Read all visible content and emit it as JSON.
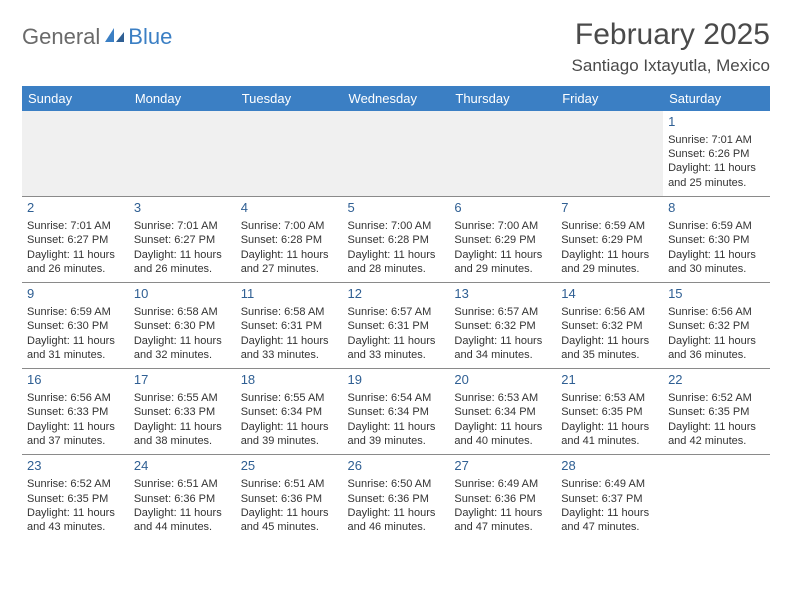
{
  "logo": {
    "part1": "General",
    "part2": "Blue"
  },
  "title": "February 2025",
  "location": "Santiago Ixtayutla, Mexico",
  "colors": {
    "header_bg": "#3b7fc4",
    "header_text": "#ffffff",
    "daynum": "#2f5f93",
    "grid_line": "#8a8a8a",
    "body_text": "#333333",
    "logo_gray": "#6a6a6a",
    "logo_blue": "#3b7fc4"
  },
  "weekdays": [
    "Sunday",
    "Monday",
    "Tuesday",
    "Wednesday",
    "Thursday",
    "Friday",
    "Saturday"
  ],
  "weeks": [
    [
      null,
      null,
      null,
      null,
      null,
      null,
      {
        "n": "1",
        "sr": "Sunrise: 7:01 AM",
        "ss": "Sunset: 6:26 PM",
        "d1": "Daylight: 11 hours",
        "d2": "and 25 minutes."
      }
    ],
    [
      {
        "n": "2",
        "sr": "Sunrise: 7:01 AM",
        "ss": "Sunset: 6:27 PM",
        "d1": "Daylight: 11 hours",
        "d2": "and 26 minutes."
      },
      {
        "n": "3",
        "sr": "Sunrise: 7:01 AM",
        "ss": "Sunset: 6:27 PM",
        "d1": "Daylight: 11 hours",
        "d2": "and 26 minutes."
      },
      {
        "n": "4",
        "sr": "Sunrise: 7:00 AM",
        "ss": "Sunset: 6:28 PM",
        "d1": "Daylight: 11 hours",
        "d2": "and 27 minutes."
      },
      {
        "n": "5",
        "sr": "Sunrise: 7:00 AM",
        "ss": "Sunset: 6:28 PM",
        "d1": "Daylight: 11 hours",
        "d2": "and 28 minutes."
      },
      {
        "n": "6",
        "sr": "Sunrise: 7:00 AM",
        "ss": "Sunset: 6:29 PM",
        "d1": "Daylight: 11 hours",
        "d2": "and 29 minutes."
      },
      {
        "n": "7",
        "sr": "Sunrise: 6:59 AM",
        "ss": "Sunset: 6:29 PM",
        "d1": "Daylight: 11 hours",
        "d2": "and 29 minutes."
      },
      {
        "n": "8",
        "sr": "Sunrise: 6:59 AM",
        "ss": "Sunset: 6:30 PM",
        "d1": "Daylight: 11 hours",
        "d2": "and 30 minutes."
      }
    ],
    [
      {
        "n": "9",
        "sr": "Sunrise: 6:59 AM",
        "ss": "Sunset: 6:30 PM",
        "d1": "Daylight: 11 hours",
        "d2": "and 31 minutes."
      },
      {
        "n": "10",
        "sr": "Sunrise: 6:58 AM",
        "ss": "Sunset: 6:30 PM",
        "d1": "Daylight: 11 hours",
        "d2": "and 32 minutes."
      },
      {
        "n": "11",
        "sr": "Sunrise: 6:58 AM",
        "ss": "Sunset: 6:31 PM",
        "d1": "Daylight: 11 hours",
        "d2": "and 33 minutes."
      },
      {
        "n": "12",
        "sr": "Sunrise: 6:57 AM",
        "ss": "Sunset: 6:31 PM",
        "d1": "Daylight: 11 hours",
        "d2": "and 33 minutes."
      },
      {
        "n": "13",
        "sr": "Sunrise: 6:57 AM",
        "ss": "Sunset: 6:32 PM",
        "d1": "Daylight: 11 hours",
        "d2": "and 34 minutes."
      },
      {
        "n": "14",
        "sr": "Sunrise: 6:56 AM",
        "ss": "Sunset: 6:32 PM",
        "d1": "Daylight: 11 hours",
        "d2": "and 35 minutes."
      },
      {
        "n": "15",
        "sr": "Sunrise: 6:56 AM",
        "ss": "Sunset: 6:32 PM",
        "d1": "Daylight: 11 hours",
        "d2": "and 36 minutes."
      }
    ],
    [
      {
        "n": "16",
        "sr": "Sunrise: 6:56 AM",
        "ss": "Sunset: 6:33 PM",
        "d1": "Daylight: 11 hours",
        "d2": "and 37 minutes."
      },
      {
        "n": "17",
        "sr": "Sunrise: 6:55 AM",
        "ss": "Sunset: 6:33 PM",
        "d1": "Daylight: 11 hours",
        "d2": "and 38 minutes."
      },
      {
        "n": "18",
        "sr": "Sunrise: 6:55 AM",
        "ss": "Sunset: 6:34 PM",
        "d1": "Daylight: 11 hours",
        "d2": "and 39 minutes."
      },
      {
        "n": "19",
        "sr": "Sunrise: 6:54 AM",
        "ss": "Sunset: 6:34 PM",
        "d1": "Daylight: 11 hours",
        "d2": "and 39 minutes."
      },
      {
        "n": "20",
        "sr": "Sunrise: 6:53 AM",
        "ss": "Sunset: 6:34 PM",
        "d1": "Daylight: 11 hours",
        "d2": "and 40 minutes."
      },
      {
        "n": "21",
        "sr": "Sunrise: 6:53 AM",
        "ss": "Sunset: 6:35 PM",
        "d1": "Daylight: 11 hours",
        "d2": "and 41 minutes."
      },
      {
        "n": "22",
        "sr": "Sunrise: 6:52 AM",
        "ss": "Sunset: 6:35 PM",
        "d1": "Daylight: 11 hours",
        "d2": "and 42 minutes."
      }
    ],
    [
      {
        "n": "23",
        "sr": "Sunrise: 6:52 AM",
        "ss": "Sunset: 6:35 PM",
        "d1": "Daylight: 11 hours",
        "d2": "and 43 minutes."
      },
      {
        "n": "24",
        "sr": "Sunrise: 6:51 AM",
        "ss": "Sunset: 6:36 PM",
        "d1": "Daylight: 11 hours",
        "d2": "and 44 minutes."
      },
      {
        "n": "25",
        "sr": "Sunrise: 6:51 AM",
        "ss": "Sunset: 6:36 PM",
        "d1": "Daylight: 11 hours",
        "d2": "and 45 minutes."
      },
      {
        "n": "26",
        "sr": "Sunrise: 6:50 AM",
        "ss": "Sunset: 6:36 PM",
        "d1": "Daylight: 11 hours",
        "d2": "and 46 minutes."
      },
      {
        "n": "27",
        "sr": "Sunrise: 6:49 AM",
        "ss": "Sunset: 6:36 PM",
        "d1": "Daylight: 11 hours",
        "d2": "and 47 minutes."
      },
      {
        "n": "28",
        "sr": "Sunrise: 6:49 AM",
        "ss": "Sunset: 6:37 PM",
        "d1": "Daylight: 11 hours",
        "d2": "and 47 minutes."
      },
      null
    ]
  ]
}
